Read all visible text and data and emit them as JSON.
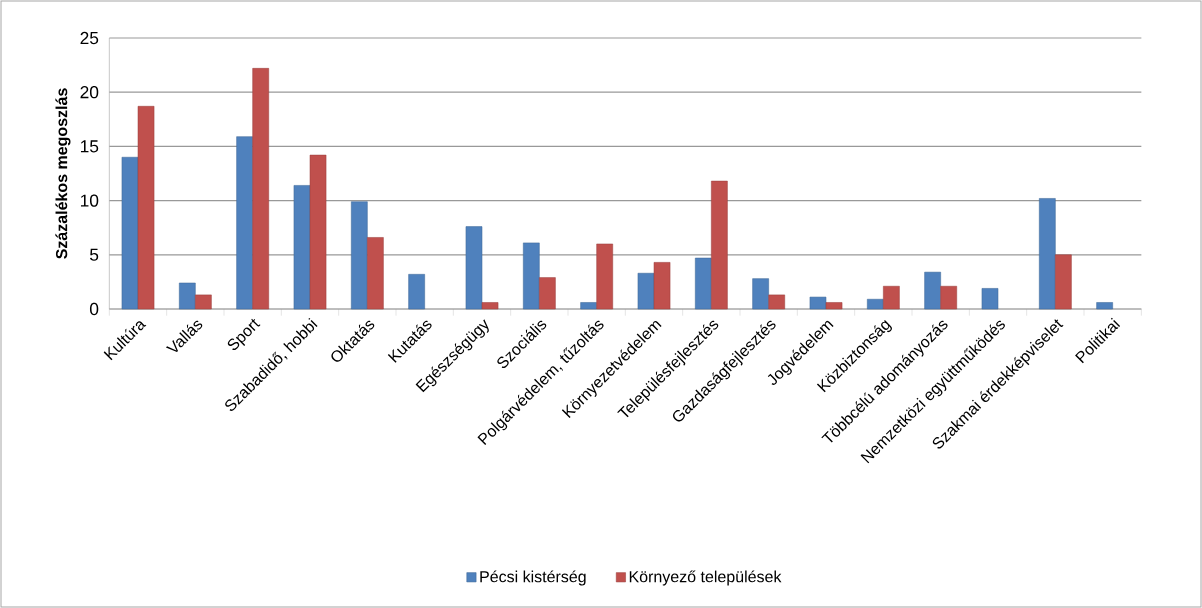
{
  "chart_data": {
    "type": "bar",
    "ylabel": "Százalékos megoszlás",
    "categories": [
      "Kultúra",
      "Vallás",
      "Sport",
      "Szabadidő, hobbi",
      "Oktatás",
      "Kutatás",
      "Egészségügy",
      "Szociális",
      "Polgárvédelem, tűzoltás",
      "Környezetvédelem",
      "Településfejlesztés",
      "Gazdaságfejlesztés",
      "Jogvédelem",
      "Közbiztonság",
      "Többcélú adományozás",
      "Nemzetközi együttműködés",
      "Szakmai érdekképviselet",
      "Politikai"
    ],
    "series": [
      {
        "name": "Pécsi kistérség",
        "color": "#4f81bd",
        "values": [
          14.0,
          2.4,
          15.9,
          11.4,
          9.9,
          3.2,
          7.6,
          6.1,
          0.6,
          3.3,
          4.7,
          2.8,
          1.1,
          0.9,
          3.4,
          1.9,
          10.2,
          0.6
        ]
      },
      {
        "name": "Környező települések",
        "color": "#c0504d",
        "values": [
          18.7,
          1.3,
          22.2,
          14.2,
          6.6,
          null,
          0.6,
          2.9,
          6.0,
          4.3,
          11.8,
          1.3,
          0.6,
          2.1,
          2.1,
          null,
          5.0,
          null
        ]
      }
    ],
    "ylim": [
      0,
      25
    ],
    "yticks": [
      0,
      5,
      10,
      15,
      20,
      25
    ],
    "grid": "y",
    "legend": "bottom"
  }
}
